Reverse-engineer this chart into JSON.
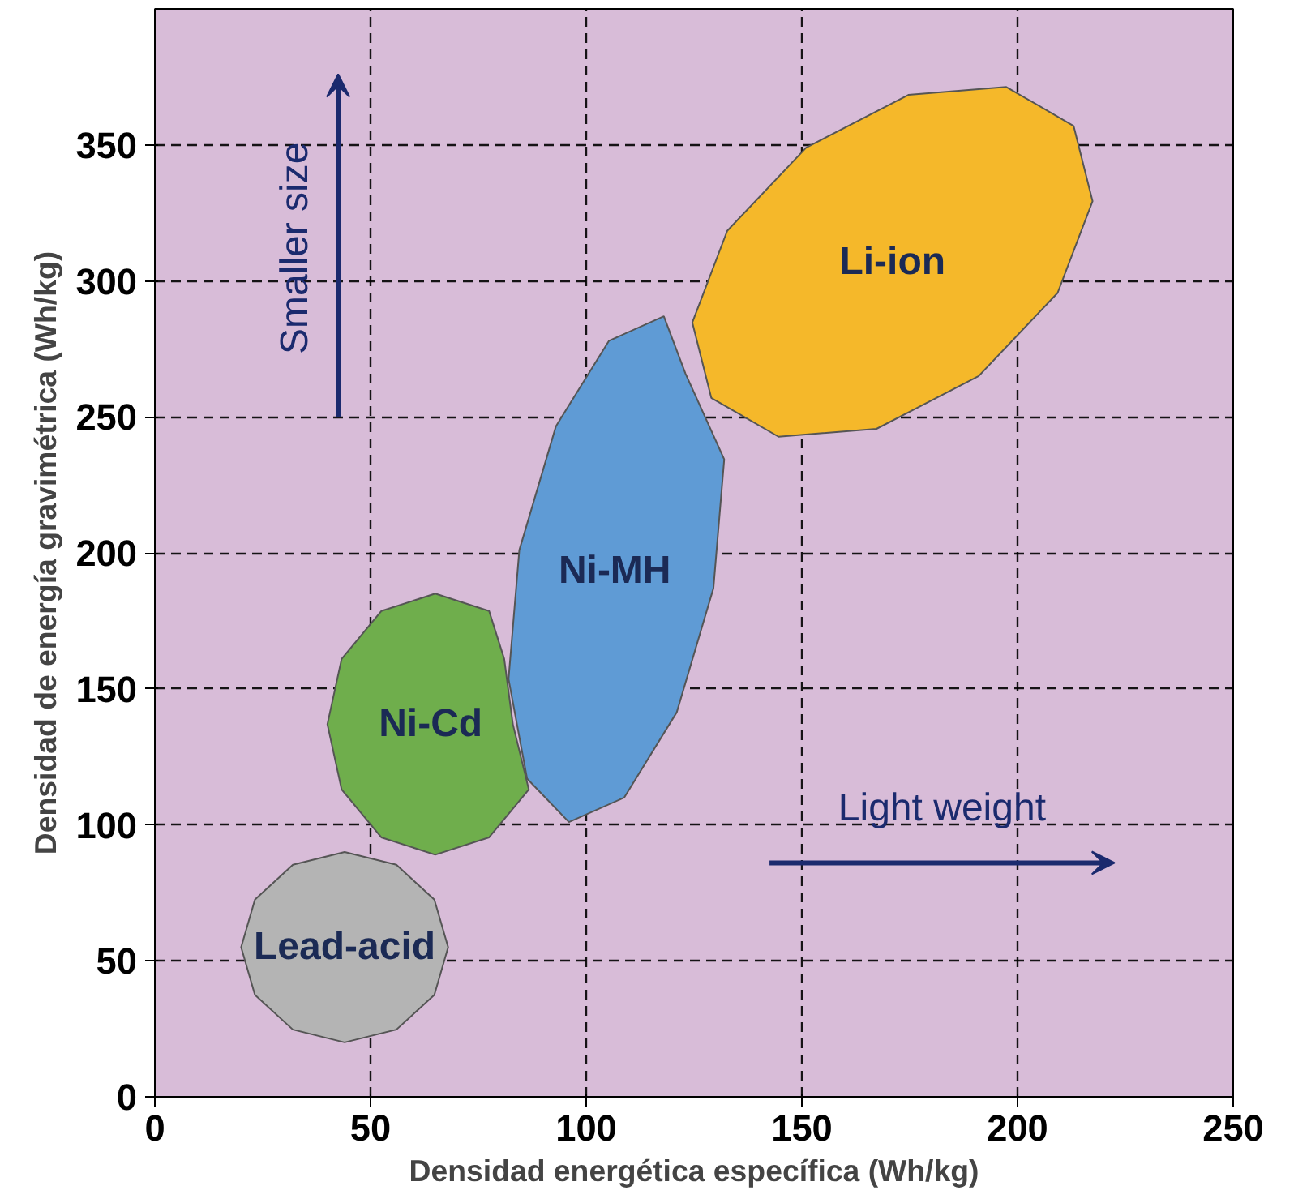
{
  "chart_data": {
    "type": "area",
    "xlabel": "Densidad energética específica (Wh/kg)",
    "ylabel": "Densidad de energía gravimétrica (Wh/kg)",
    "xlim": [
      0,
      250
    ],
    "ylim": [
      0,
      400
    ],
    "xticks": [
      0,
      50,
      100,
      150,
      200,
      250
    ],
    "yticks": [
      0,
      50,
      100,
      150,
      200,
      250,
      300,
      350
    ],
    "grid": true,
    "line_style": "dashed",
    "annotations": [
      "Smaller size",
      "Light weight"
    ],
    "series": [
      {
        "name": "Lead-acid",
        "color": "#b4b4b4",
        "x": [
          68,
          64.8,
          56,
          44,
          32,
          23.2,
          20,
          23.2,
          32,
          44,
          56,
          64.8
        ],
        "values": [
          55,
          72.5,
          85.3,
          90,
          85.3,
          72.5,
          55,
          37.5,
          24.7,
          20,
          24.7,
          37.5
        ]
      },
      {
        "name": "Ni-Cd",
        "color": "#6fae4c",
        "x": [
          83,
          81,
          77.5,
          65,
          52.5,
          43.3,
          40,
          43.3,
          52.5,
          65,
          77.5,
          86.7
        ],
        "values": [
          137,
          161,
          178.6,
          185,
          178.6,
          161,
          137,
          113,
          95.4,
          89,
          95.4,
          113
        ]
      },
      {
        "name": "Ni-MH",
        "color": "#5f9bd5",
        "x": [
          129.5,
          132,
          123,
          118,
          105.3,
          93,
          84.5,
          82,
          86.3,
          96,
          108.8,
          121
        ],
        "values": [
          187,
          234.4,
          266,
          287,
          278,
          246.6,
          201,
          153.6,
          117,
          101,
          110,
          141.4
        ]
      },
      {
        "name": "Li-ion",
        "color": "#f5b82a",
        "x": [
          191,
          209.3,
          217.4,
          213,
          197.4,
          174.7,
          151,
          132.7,
          124.6,
          129,
          144.6,
          167.3
        ],
        "values": [
          265,
          295.6,
          329.3,
          357,
          371.3,
          368.4,
          349,
          318.4,
          284.7,
          257,
          242.7,
          245.6
        ]
      }
    ]
  }
}
